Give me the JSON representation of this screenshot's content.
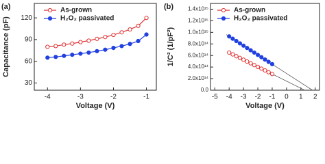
{
  "chart_data": [
    {
      "type": "line",
      "panel_label": "(a)",
      "xlabel": "Voltage (V)",
      "ylabel": "Capacitance (pF)",
      "xlim": [
        -4.4,
        -0.7
      ],
      "xticks": [
        -4,
        -3,
        -2,
        -1
      ],
      "ylim": [
        20,
        140
      ],
      "yticks": [
        30,
        60,
        90,
        120
      ],
      "x": [
        -4,
        -3.75,
        -3.5,
        -3.25,
        -3,
        -2.75,
        -2.5,
        -2.25,
        -2,
        -1.75,
        -1.5,
        -1.25,
        -1
      ],
      "series": [
        {
          "name": "As-grown",
          "color": "#e03030",
          "filled": false,
          "values": [
            80,
            81,
            83,
            84.5,
            86.5,
            88.5,
            91,
            93.5,
            96.5,
            100,
            104,
            109,
            120
          ]
        },
        {
          "name": "H₂O₂ passivated",
          "color": "#2040e0",
          "filled": true,
          "values": [
            65,
            66,
            67.5,
            69,
            70.5,
            72,
            74,
            76,
            78.5,
            81,
            84,
            88,
            97
          ]
        }
      ]
    },
    {
      "type": "scatter",
      "panel_label": "(b)",
      "xlabel": "Voltage (V)",
      "ylabel": "1/C² (1/pF²)",
      "xlim": [
        -5.3,
        2.3
      ],
      "xticks": [
        -5,
        -4,
        -3,
        -2,
        -1,
        0,
        1,
        2
      ],
      "ylim": [
        0,
        1500000000000000.0
      ],
      "yticks": [
        {
          "value": 0,
          "label": "0.0"
        },
        {
          "value": 200000000000000.0,
          "label": "2.0x10¹⁴"
        },
        {
          "value": 400000000000000.0,
          "label": "4.0x10¹⁴"
        },
        {
          "value": 600000000000000.0,
          "label": "6.0x10¹⁴"
        },
        {
          "value": 800000000000000.0,
          "label": "8.0x10¹⁴"
        },
        {
          "value": 1000000000000000.0,
          "label": "1.0x10¹⁵"
        },
        {
          "value": 1200000000000000.0,
          "label": "1.2x10¹⁵"
        },
        {
          "value": 1400000000000000.0,
          "label": "1.4x10¹⁵"
        }
      ],
      "x": [
        -4,
        -3.75,
        -3.5,
        -3.25,
        -3,
        -2.75,
        -2.5,
        -2.25,
        -2,
        -1.75,
        -1.5,
        -1.25,
        -1
      ],
      "series": [
        {
          "name": "As-grown",
          "color": "#e03030",
          "filled": false,
          "values": [
            650000000000000.0,
            619000000000000.0,
            588000000000000.0,
            558000000000000.0,
            527000000000000.0,
            496000000000000.0,
            465000000000000.0,
            434000000000000.0,
            403000000000000.0,
            373000000000000.0,
            342000000000000.0,
            311000000000000.0,
            280000000000000.0
          ]
        },
        {
          "name": "H₂O₂ passivated",
          "color": "#2040e0",
          "filled": true,
          "values": [
            930000000000000.0,
            890000000000000.0,
            850000000000000.0,
            810000000000000.0,
            770000000000000.0,
            730000000000000.0,
            690000000000000.0,
            650000000000000.0,
            610000000000000.0,
            570000000000000.0,
            530000000000000.0,
            490000000000000.0,
            450000000000000.0
          ]
        }
      ],
      "fit_lines": [
        {
          "color": "#555555",
          "x": [
            -4,
            1.27
          ],
          "values": [
            650000000000000.0,
            0
          ]
        },
        {
          "color": "#555555",
          "x": [
            -4.2,
            1.81
          ],
          "values": [
            962000000000000.0,
            0
          ]
        }
      ]
    }
  ]
}
